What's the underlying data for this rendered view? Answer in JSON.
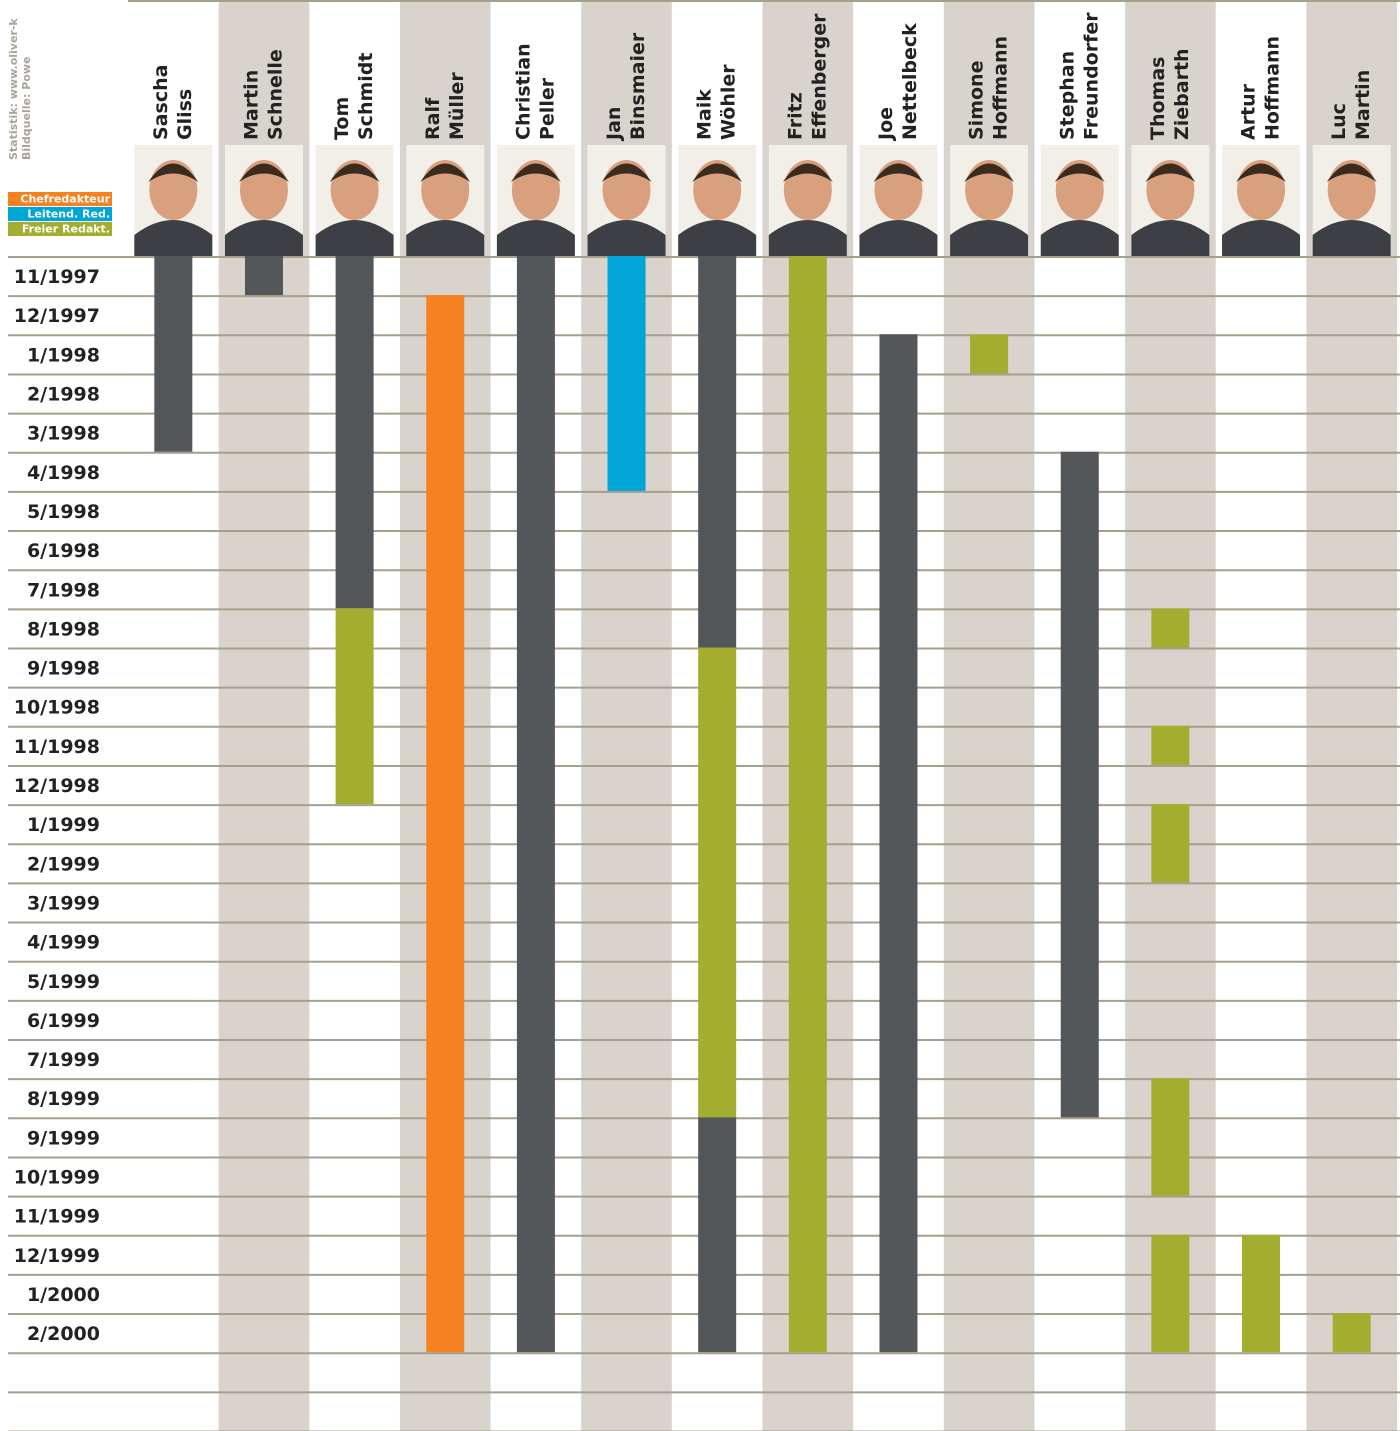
{
  "chart_data": {
    "type": "gantt",
    "source_lines": [
      "Statistik: www.oliver-k",
      "Bildquelle: Powe"
    ],
    "legend": [
      {
        "label": "Chefredakteur",
        "color": "#f58220"
      },
      {
        "label": "Leitend. Red.",
        "color": "#00a6d6"
      },
      {
        "label": "Freier Redakt.",
        "color": "#a3ad2f"
      }
    ],
    "months": [
      "11/1997",
      "12/1997",
      "1/1998",
      "2/1998",
      "3/1998",
      "4/1998",
      "5/1998",
      "6/1998",
      "7/1998",
      "8/1998",
      "9/1998",
      "10/1998",
      "11/1998",
      "12/1998",
      "1/1999",
      "2/1999",
      "3/1999",
      "4/1999",
      "5/1999",
      "6/1999",
      "7/1999",
      "8/1999",
      "9/1999",
      "10/1999",
      "11/1999",
      "12/1999",
      "1/2000",
      "2/2000"
    ],
    "people": [
      {
        "name": [
          "Sascha",
          "Gliss"
        ],
        "segments": [
          {
            "start": "11/1997",
            "end": "3/1998",
            "color": "#535759"
          }
        ]
      },
      {
        "name": [
          "Martin",
          "Schnelle"
        ],
        "segments": [
          {
            "start": "11/1997",
            "end": "11/1997",
            "color": "#535759"
          }
        ]
      },
      {
        "name": [
          "Tom",
          "Schmidt"
        ],
        "segments": [
          {
            "start": "11/1997",
            "end": "7/1998",
            "color": "#535759"
          },
          {
            "start": "8/1998",
            "end": "12/1998",
            "color": "#a3ad2f"
          }
        ]
      },
      {
        "name": [
          "Ralf",
          "Müller"
        ],
        "segments": [
          {
            "start": "12/1997",
            "end": "2/2000",
            "color": "#f58220"
          }
        ]
      },
      {
        "name": [
          "Christian",
          "Peller"
        ],
        "segments": [
          {
            "start": "11/1997",
            "end": "2/2000",
            "color": "#535759"
          }
        ]
      },
      {
        "name": [
          "Jan",
          "Binsmaier"
        ],
        "segments": [
          {
            "start": "11/1997",
            "end": "4/1998",
            "color": "#00a6d6"
          }
        ]
      },
      {
        "name": [
          "Maik",
          "Wöhler"
        ],
        "segments": [
          {
            "start": "11/1997",
            "end": "8/1998",
            "color": "#535759"
          },
          {
            "start": "9/1998",
            "end": "8/1999",
            "color": "#a3ad2f"
          },
          {
            "start": "9/1999",
            "end": "2/2000",
            "color": "#535759"
          }
        ]
      },
      {
        "name": [
          "Fritz",
          "Effenberger"
        ],
        "segments": [
          {
            "start": "11/1997",
            "end": "2/2000",
            "color": "#a3ad2f"
          }
        ]
      },
      {
        "name": [
          "Joe",
          "Nettelbeck"
        ],
        "segments": [
          {
            "start": "1/1998",
            "end": "2/2000",
            "color": "#535759"
          }
        ]
      },
      {
        "name": [
          "Simone",
          "Hoffmann"
        ],
        "segments": [
          {
            "start": "1/1998",
            "end": "1/1998",
            "color": "#a3ad2f"
          }
        ]
      },
      {
        "name": [
          "Stephan",
          "Freundorfer"
        ],
        "segments": [
          {
            "start": "4/1998",
            "end": "8/1999",
            "color": "#535759"
          }
        ]
      },
      {
        "name": [
          "Thomas",
          "Ziebarth"
        ],
        "segments": [
          {
            "start": "8/1998",
            "end": "8/1998",
            "color": "#a3ad2f"
          },
          {
            "start": "11/1998",
            "end": "11/1998",
            "color": "#a3ad2f"
          },
          {
            "start": "1/1999",
            "end": "2/1999",
            "color": "#a3ad2f"
          },
          {
            "start": "8/1999",
            "end": "10/1999",
            "color": "#a3ad2f"
          },
          {
            "start": "12/1999",
            "end": "2/2000",
            "color": "#a3ad2f"
          }
        ]
      },
      {
        "name": [
          "Artur",
          "Hoffmann"
        ],
        "segments": [
          {
            "start": "12/1999",
            "end": "2/2000",
            "color": "#a3ad2f"
          }
        ]
      },
      {
        "name": [
          "Luc",
          "Martin"
        ],
        "segments": [
          {
            "start": "2/2000",
            "end": "2/2000",
            "color": "#a3ad2f"
          }
        ]
      }
    ]
  }
}
